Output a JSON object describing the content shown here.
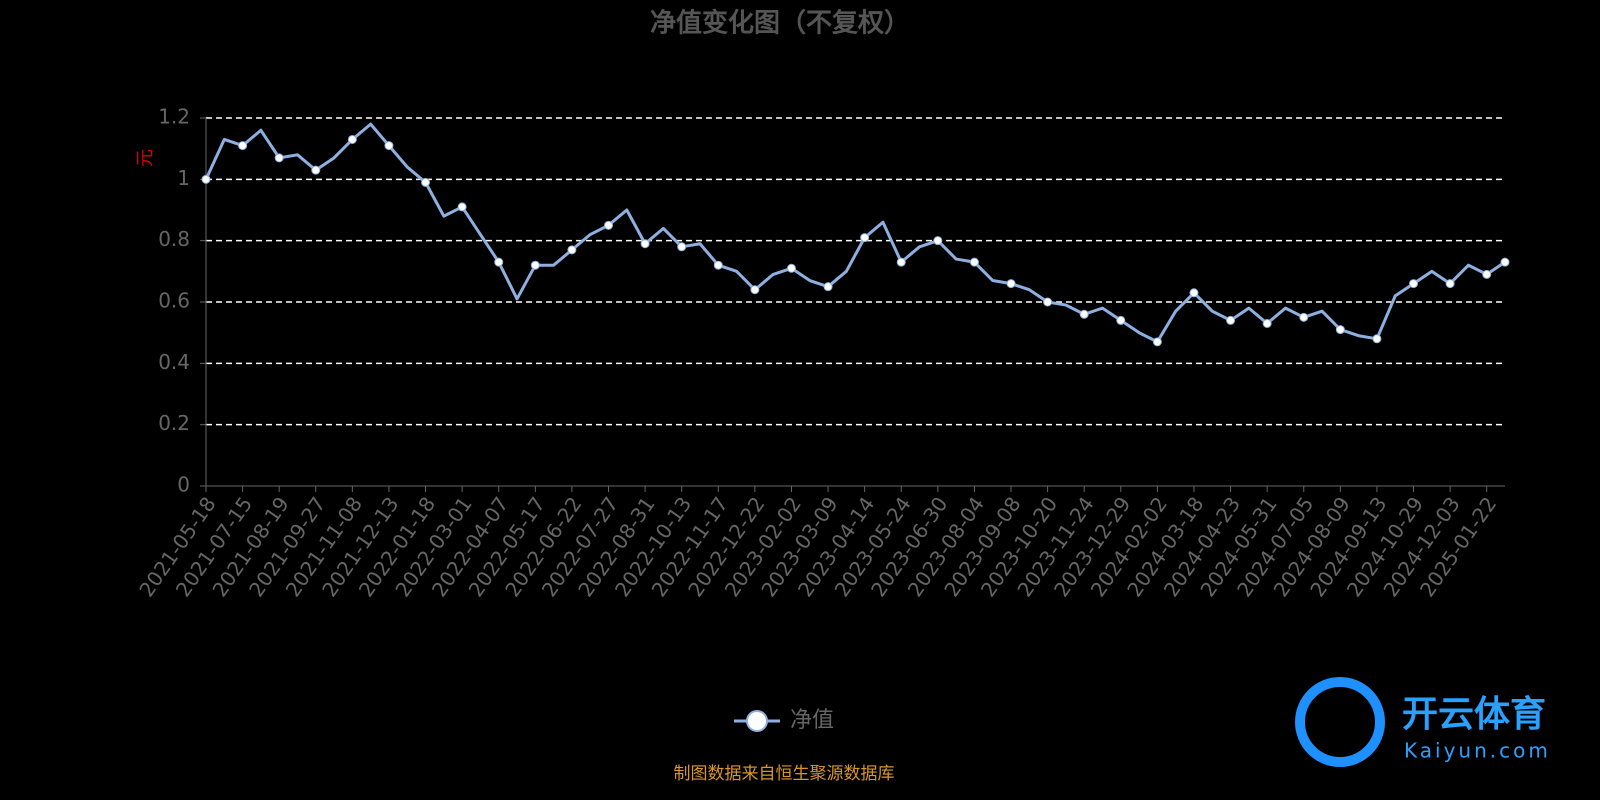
{
  "chart_data": {
    "type": "line",
    "title": "净值变化图（不复权）",
    "y_label": "元",
    "source": "制图数据来自恒生聚源数据库",
    "categories": [
      "2021-05-18",
      null,
      "2021-07-15",
      null,
      "2021-08-19",
      null,
      "2021-09-27",
      null,
      "2021-11-08",
      null,
      "2021-12-13",
      null,
      "2022-01-18",
      null,
      "2022-03-01",
      null,
      "2022-04-07",
      null,
      "2022-05-17",
      null,
      "2022-06-22",
      null,
      "2022-07-27",
      null,
      "2022-08-31",
      null,
      "2022-10-13",
      null,
      "2022-11-17",
      null,
      "2022-12-22",
      null,
      "2023-02-02",
      null,
      "2023-03-09",
      null,
      "2023-04-14",
      null,
      "2023-05-24",
      null,
      "2023-06-30",
      null,
      "2023-08-04",
      null,
      "2023-09-08",
      null,
      "2023-10-20",
      null,
      "2023-11-24",
      null,
      "2023-12-29",
      null,
      "2024-02-02",
      null,
      "2024-03-18",
      null,
      "2024-04-23",
      null,
      "2024-05-31",
      null,
      "2024-07-05",
      null,
      "2024-08-09",
      null,
      "2024-09-13",
      null,
      "2024-10-29",
      null,
      "2024-12-03",
      null,
      "2025-01-22",
      null
    ],
    "series": [
      {
        "name": "净值",
        "color": "#8eb0e0",
        "values": [
          1.0,
          1.13,
          1.11,
          1.16,
          1.07,
          1.08,
          1.03,
          1.07,
          1.13,
          1.18,
          1.11,
          1.04,
          0.99,
          0.88,
          0.91,
          0.82,
          0.73,
          0.61,
          0.72,
          0.72,
          0.77,
          0.82,
          0.85,
          0.9,
          0.79,
          0.84,
          0.78,
          0.79,
          0.72,
          0.7,
          0.64,
          0.69,
          0.71,
          0.67,
          0.65,
          0.7,
          0.81,
          0.86,
          0.73,
          0.78,
          0.8,
          0.74,
          0.73,
          0.67,
          0.66,
          0.64,
          0.6,
          0.59,
          0.56,
          0.58,
          0.54,
          0.5,
          0.47,
          0.57,
          0.63,
          0.57,
          0.54,
          0.58,
          0.53,
          0.58,
          0.55,
          0.57,
          0.51,
          0.49,
          0.48,
          0.62,
          0.66,
          0.7,
          0.66,
          0.72,
          0.69,
          0.73
        ]
      }
    ],
    "ylim": [
      0,
      1.2
    ],
    "yticks": [
      0,
      0.2,
      0.4,
      0.6,
      0.8,
      1,
      1.2
    ],
    "grid": true
  },
  "watermark": {
    "name": "开云体育",
    "url": "Kaiyun.com"
  }
}
